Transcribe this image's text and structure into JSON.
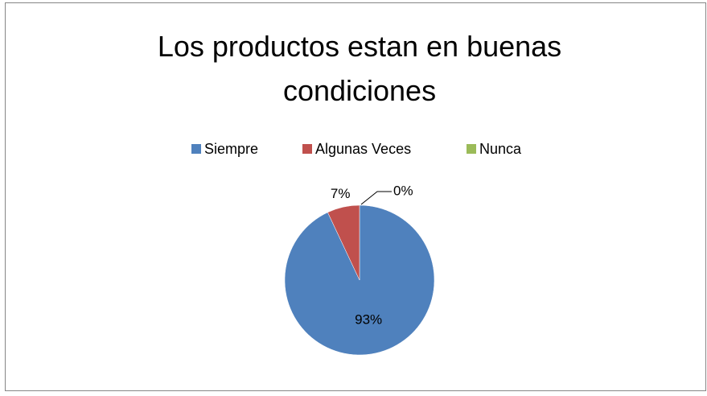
{
  "chart_data": {
    "type": "pie",
    "title": "Los productos estan en buenas condiciones",
    "categories": [
      "Siempre",
      "Algunas Veces",
      "Nunca"
    ],
    "values": [
      93,
      7,
      0
    ],
    "value_labels": [
      "93%",
      "7%",
      "0%"
    ],
    "colors": [
      "#4f81bd",
      "#c0504d",
      "#9bbb59"
    ],
    "legend": "top"
  }
}
